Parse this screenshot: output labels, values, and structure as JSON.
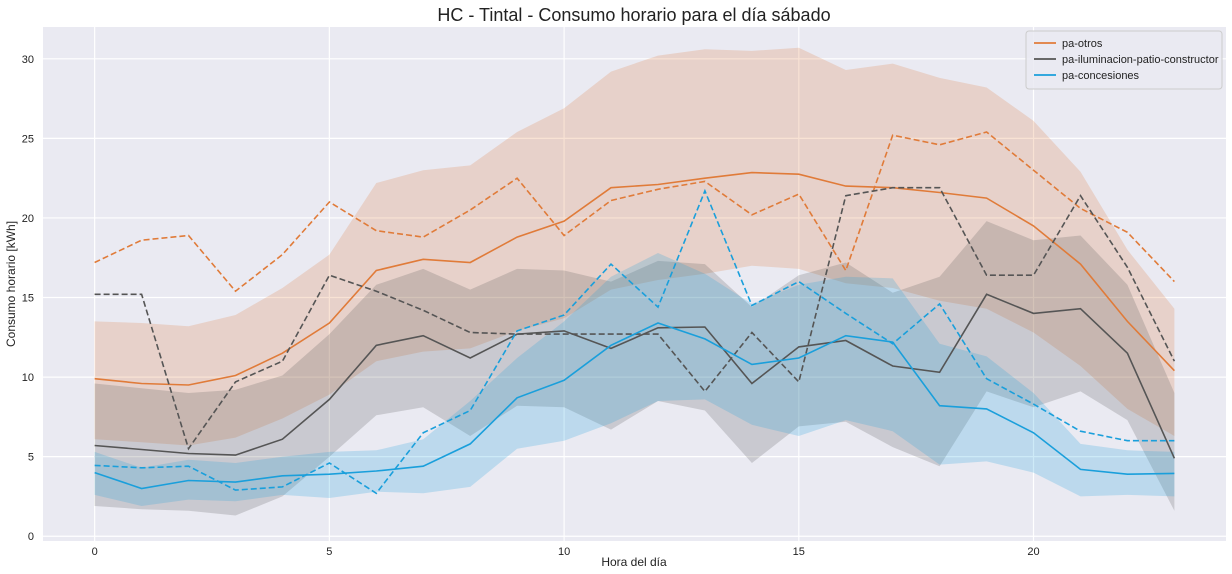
{
  "chart_data": {
    "type": "line",
    "title": "HC - Tintal - Consumo horario para el día sábado",
    "xlabel": "Hora del día",
    "ylabel": "Consumo horario [kWh]",
    "xlim": [
      -1.1,
      24.1
    ],
    "ylim": [
      -0.3,
      32
    ],
    "xticks": [
      0,
      5,
      10,
      15,
      20
    ],
    "yticks": [
      0,
      5,
      10,
      15,
      20,
      25,
      30
    ],
    "grid": true,
    "legend_position": "top-right",
    "background": "#eaeaf2",
    "x": [
      0,
      1,
      2,
      3,
      4,
      5,
      6,
      7,
      8,
      9,
      10,
      11,
      12,
      13,
      14,
      15,
      16,
      17,
      18,
      19,
      20,
      21,
      22,
      23
    ],
    "series": [
      {
        "name": "pa-otros",
        "color": "#e07b39",
        "mean": [
          9.9,
          9.6,
          9.5,
          10.1,
          11.5,
          13.4,
          16.7,
          17.4,
          17.2,
          18.8,
          19.8,
          21.9,
          22.1,
          22.5,
          22.85,
          22.75,
          22.0,
          21.9,
          21.6,
          21.25,
          19.5,
          17.1,
          13.5,
          10.4
        ],
        "lower": [
          6.1,
          5.9,
          5.7,
          6.2,
          7.4,
          8.9,
          11.0,
          11.6,
          11.8,
          12.9,
          13.7,
          15.5,
          16.1,
          16.5,
          17.0,
          16.8,
          15.9,
          15.6,
          14.8,
          14.3,
          12.8,
          10.7,
          8.0,
          6.3
        ],
        "upper": [
          13.5,
          13.4,
          13.2,
          13.9,
          15.6,
          17.7,
          22.2,
          23.0,
          23.3,
          25.4,
          26.9,
          29.2,
          30.2,
          30.6,
          30.5,
          30.7,
          29.3,
          29.7,
          28.8,
          28.2,
          26.1,
          22.9,
          18.0,
          14.3
        ],
        "reference": [
          17.2,
          18.6,
          18.9,
          15.4,
          17.7,
          21.0,
          19.2,
          18.8,
          20.5,
          22.5,
          18.9,
          21.1,
          21.8,
          22.3,
          20.2,
          21.5,
          16.7,
          25.2,
          24.6,
          25.4,
          23.0,
          20.6,
          19.1,
          16.0
        ]
      },
      {
        "name": "pa-iluminacion-patio-constructor",
        "color": "#555555",
        "mean": [
          5.7,
          5.45,
          5.2,
          5.1,
          6.1,
          8.6,
          12.0,
          12.6,
          11.2,
          12.7,
          12.9,
          11.8,
          13.1,
          13.15,
          9.6,
          11.9,
          12.3,
          10.7,
          10.3,
          15.2,
          14.0,
          14.3,
          11.5,
          4.9
        ],
        "lower": [
          1.9,
          1.7,
          1.6,
          1.3,
          2.5,
          5.0,
          7.6,
          8.1,
          6.3,
          8.2,
          8.1,
          6.7,
          8.5,
          7.9,
          4.6,
          6.9,
          7.2,
          5.6,
          4.4,
          9.1,
          8.1,
          9.1,
          7.3,
          1.6
        ],
        "upper": [
          9.6,
          9.3,
          9.0,
          9.2,
          10.1,
          12.7,
          15.8,
          16.8,
          15.5,
          16.8,
          16.7,
          16.0,
          17.3,
          17.1,
          14.4,
          16.4,
          17.2,
          15.3,
          16.3,
          19.8,
          18.6,
          18.9,
          15.8,
          9.0
        ],
        "reference": [
          15.2,
          15.2,
          5.5,
          9.7,
          11.0,
          16.4,
          15.4,
          14.2,
          12.8,
          12.7,
          12.7,
          12.7,
          12.7,
          9.1,
          12.8,
          9.7,
          21.4,
          21.9,
          21.9,
          16.4,
          16.4,
          21.4,
          16.9,
          11.0
        ]
      },
      {
        "name": "pa-concesiones",
        "color": "#1a9fdb",
        "mean": [
          4.0,
          3.0,
          3.5,
          3.4,
          3.8,
          3.9,
          4.1,
          4.4,
          5.8,
          8.7,
          9.8,
          12.0,
          13.4,
          12.4,
          10.8,
          11.2,
          12.6,
          12.2,
          8.2,
          8.0,
          6.5,
          4.2,
          3.9,
          3.95
        ],
        "lower": [
          2.6,
          1.9,
          2.3,
          2.2,
          2.6,
          2.4,
          2.8,
          2.7,
          3.1,
          5.5,
          6.0,
          7.1,
          8.5,
          8.6,
          7.0,
          6.3,
          7.3,
          6.6,
          4.5,
          4.7,
          4.0,
          2.5,
          2.6,
          2.5
        ],
        "upper": [
          5.3,
          4.3,
          4.8,
          4.6,
          5.0,
          5.3,
          5.4,
          6.1,
          8.5,
          11.2,
          13.5,
          16.3,
          17.8,
          16.5,
          14.6,
          15.8,
          16.3,
          16.2,
          12.1,
          11.3,
          9.0,
          5.8,
          5.4,
          5.3
        ],
        "reference": [
          4.45,
          4.3,
          4.4,
          2.9,
          3.1,
          4.6,
          2.7,
          6.5,
          7.9,
          12.9,
          13.9,
          17.1,
          14.4,
          21.7,
          14.5,
          16.0,
          14.0,
          12.1,
          14.6,
          9.9,
          8.3,
          6.6,
          6.0,
          6.0
        ]
      }
    ]
  }
}
